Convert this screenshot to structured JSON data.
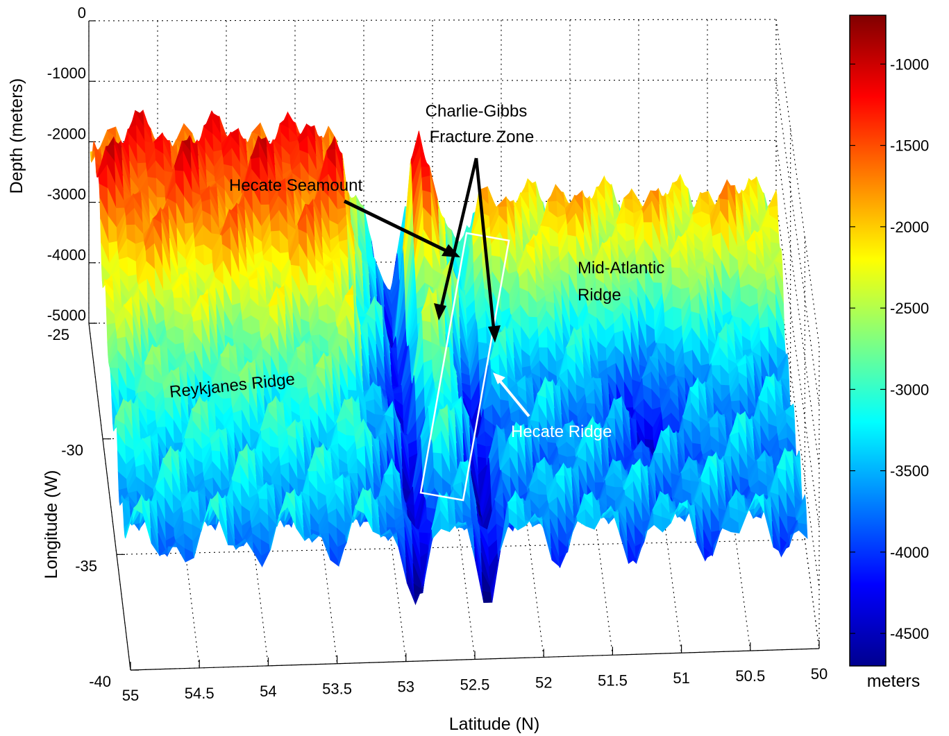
{
  "chart_data": {
    "type": "surface",
    "title": "",
    "xlabel": "Latitude (N)",
    "ylabel": "Longitude (W)",
    "zlabel": "Depth (meters)",
    "x_ticks": [
      "55",
      "54.5",
      "54",
      "53.5",
      "53",
      "52.5",
      "52",
      "51.5",
      "51",
      "50.5",
      "50"
    ],
    "y_ticks": [
      "-25",
      "-30",
      "-35",
      "-40"
    ],
    "z_ticks": [
      "0",
      "-1000",
      "-2000",
      "-3000",
      "-4000",
      "-5000"
    ],
    "xlim": [
      55,
      50
    ],
    "ylim": [
      -25,
      -40
    ],
    "zlim": [
      -5000,
      0
    ],
    "grid": true,
    "colormap": "jet",
    "colorbar": {
      "label": "meters",
      "ticks": [
        "-1000",
        "-1500",
        "-2000",
        "-2500",
        "-3000",
        "-3500",
        "-4000",
        "-4500"
      ],
      "range": [
        -4700,
        -700
      ]
    },
    "features": [
      {
        "name": "Reykjanes Ridge",
        "latitude": 54.2,
        "longitude": -27,
        "depth": -1500
      },
      {
        "name": "Hecate Seamount",
        "latitude": 52.6,
        "longitude": -27,
        "depth": -1600
      },
      {
        "name": "Charlie-Gibbs Fracture Zone",
        "latitude": 52.5,
        "longitude": -29,
        "depth": -4500
      },
      {
        "name": "Mid-Atlantic Ridge",
        "latitude": 51.5,
        "longitude": -28,
        "depth": -2000
      },
      {
        "name": "Hecate Ridge",
        "latitude": 52.5,
        "longitude": -31,
        "depth": -3000
      }
    ],
    "annotations": [
      {
        "text": "Charlie-Gibbs",
        "color": "#000000"
      },
      {
        "text": "Fracture Zone",
        "color": "#000000"
      },
      {
        "text": "Hecate Seamount",
        "color": "#000000"
      },
      {
        "text": "Mid-Atlantic",
        "color": "#000000"
      },
      {
        "text": "Ridge",
        "color": "#000000"
      },
      {
        "text": "Reykjanes Ridge",
        "color": "#000000"
      },
      {
        "text": "Hecate Ridge",
        "color": "#ffffff"
      }
    ]
  }
}
